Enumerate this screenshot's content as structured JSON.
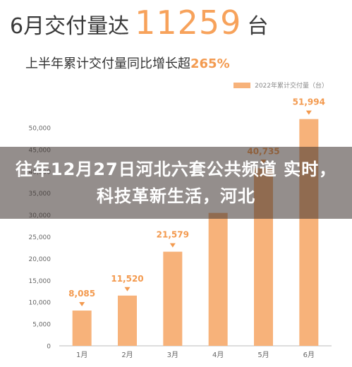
{
  "headline": {
    "prefix": "6月交付量达",
    "number": "11259",
    "suffix": "台"
  },
  "subtitle": {
    "text": "上半年累计交付量同比增长超",
    "highlight": "265%"
  },
  "overlay": {
    "title": "往年12月27日河北六套公共频道 实时，科技革新生活，河北"
  },
  "colors": {
    "bar": "#f7b27a",
    "label": "#f39a4f",
    "axis": "#666666"
  },
  "chart_data": {
    "type": "bar",
    "legend": "2022年累计交付量（台）",
    "categories": [
      "1月",
      "2月",
      "3月",
      "4月",
      "5月",
      "6月"
    ],
    "values": [
      8085,
      11520,
      21579,
      30476,
      40735,
      51994
    ],
    "value_labels": [
      "8,085",
      "11,520",
      "21,579",
      "",
      "40,735",
      "51,994"
    ],
    "y_ticks": [
      "0",
      "5,000",
      "10,000",
      "15,000",
      "20,000",
      "25,000",
      "30,000",
      "35,000",
      "40,000",
      "45,000",
      "50,000"
    ],
    "ylim": [
      0,
      50000
    ],
    "grid": false
  }
}
